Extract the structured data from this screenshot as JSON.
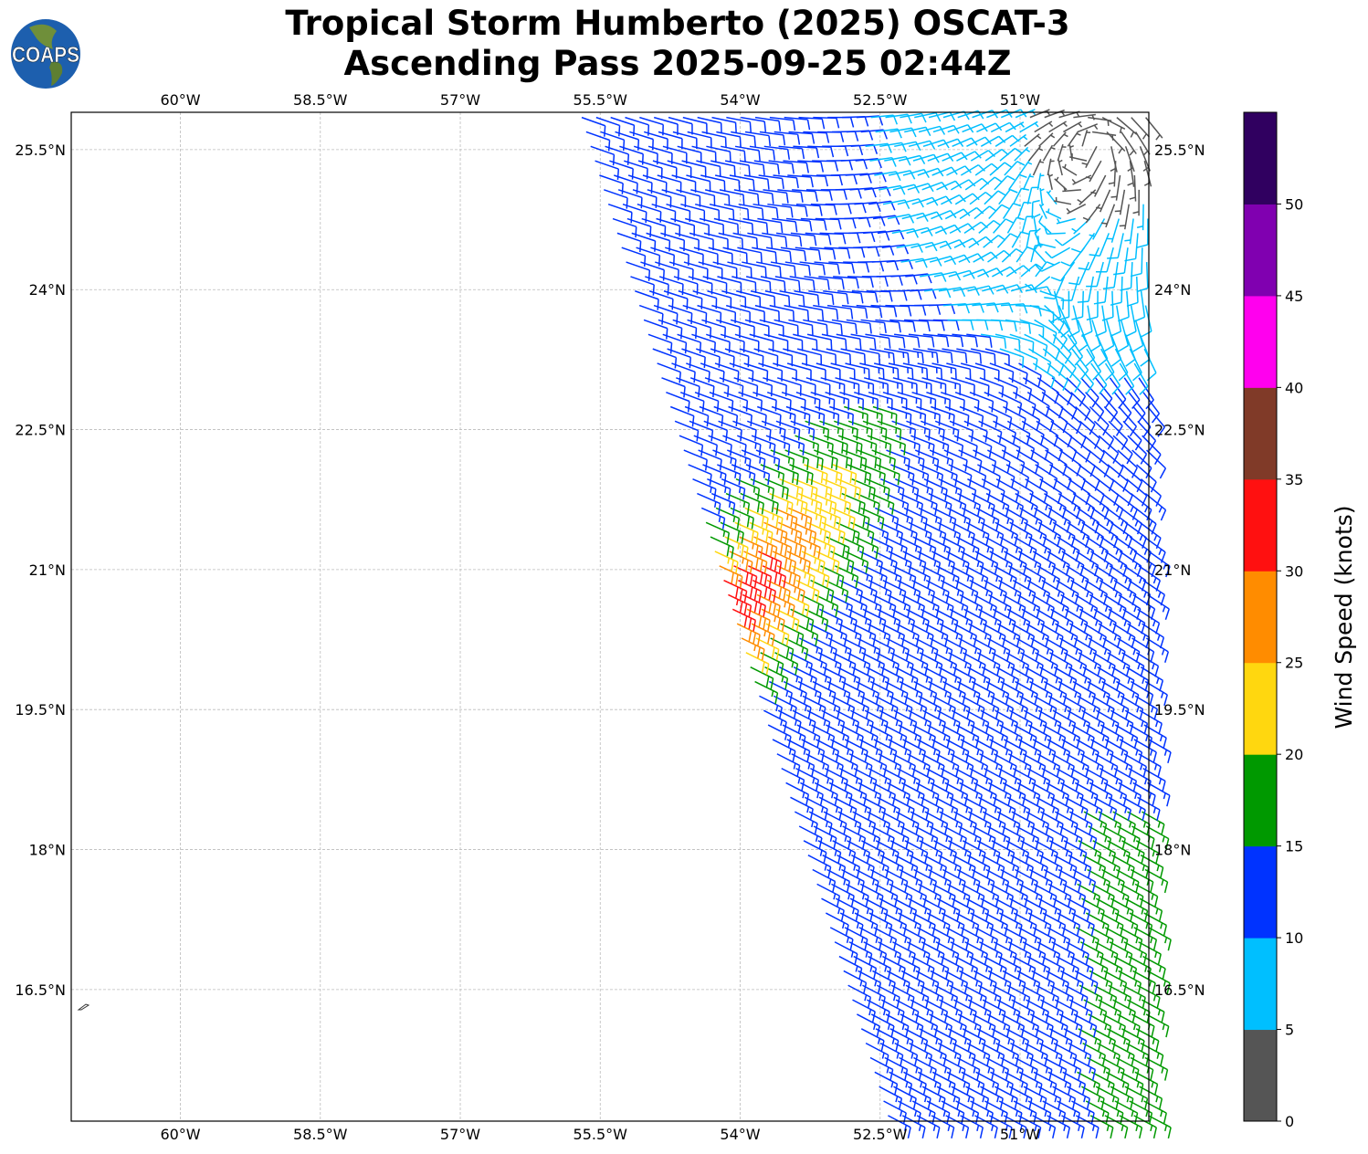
{
  "title": {
    "line1": "Tropical Storm Humberto (2025) OSCAT-3",
    "line2": "Ascending Pass 2025-09-25 02:44Z"
  },
  "logo": {
    "text": "COAPS"
  },
  "chart_data": {
    "type": "wind-barb map",
    "extent": {
      "lon": [
        -61.17,
        -49.62
      ],
      "lat": [
        15.09,
        25.9
      ]
    },
    "xticks": [
      {
        "v": -60,
        "label": "60°W"
      },
      {
        "v": -58.5,
        "label": "58.5°W"
      },
      {
        "v": -57,
        "label": "57°W"
      },
      {
        "v": -55.5,
        "label": "55.5°W"
      },
      {
        "v": -54,
        "label": "54°W"
      },
      {
        "v": -52.5,
        "label": "52.5°W"
      },
      {
        "v": -51,
        "label": "51°W"
      }
    ],
    "yticks": [
      {
        "v": 25.5,
        "label": "25.5°N"
      },
      {
        "v": 24,
        "label": "24°N"
      },
      {
        "v": 22.5,
        "label": "22.5°N"
      },
      {
        "v": 21,
        "label": "21°N"
      },
      {
        "v": 19.5,
        "label": "19.5°N"
      },
      {
        "v": 18,
        "label": "18°N"
      },
      {
        "v": 16.5,
        "label": "16.5°N"
      }
    ],
    "grid": true,
    "swath_left_edge": [
      [
        -55.7,
        25.85
      ],
      [
        -52.4,
        15.1
      ]
    ],
    "wind_model": {
      "center": [
        -50.2,
        25.6
      ],
      "jet_core": [
        -54.2,
        20.6
      ],
      "peak_kt": 33,
      "background_kt": 13
    },
    "colorbar": {
      "label": "Wind Speed (knots)",
      "bounds": [
        0,
        5,
        10,
        15,
        20,
        25,
        30,
        35,
        40,
        45,
        50,
        55
      ],
      "colors": [
        "#555555",
        "#00bfff",
        "#0033ff",
        "#009900",
        "#ffd70f",
        "#ff8c00",
        "#ff1010",
        "#803a28",
        "#ff00ee",
        "#8000b0",
        "#300060"
      ],
      "ticks": [
        {
          "v": 0,
          "label": "0"
        },
        {
          "v": 5,
          "label": "5"
        },
        {
          "v": 10,
          "label": "10"
        },
        {
          "v": 15,
          "label": "15"
        },
        {
          "v": 20,
          "label": "20"
        },
        {
          "v": 25,
          "label": "25"
        },
        {
          "v": 30,
          "label": "30"
        },
        {
          "v": 35,
          "label": "35"
        },
        {
          "v": 40,
          "label": "40"
        },
        {
          "v": 45,
          "label": "45"
        },
        {
          "v": 50,
          "label": "50"
        }
      ]
    }
  }
}
